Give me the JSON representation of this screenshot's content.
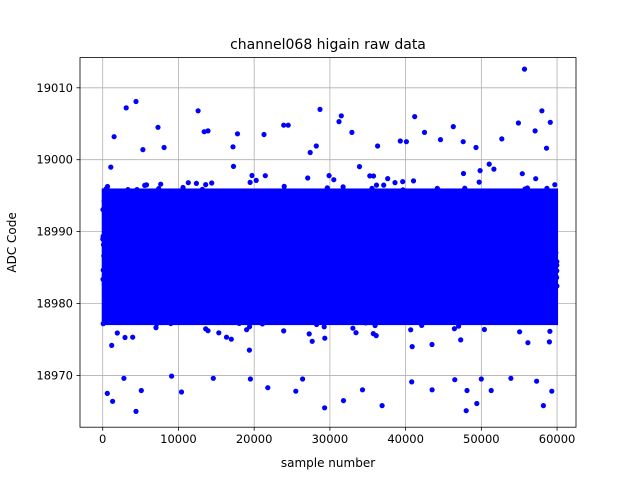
{
  "chart_data": {
    "type": "scatter",
    "title": "channel068 higain raw data",
    "xlabel": "sample number",
    "ylabel": "ADC Code",
    "xlim": [
      -3000,
      62500
    ],
    "ylim": [
      18962.8,
      19014.2
    ],
    "x_ticks": [
      0,
      10000,
      20000,
      30000,
      40000,
      50000,
      60000
    ],
    "y_ticks": [
      18970,
      18980,
      18990,
      19000,
      19010
    ],
    "grid": true,
    "marker_color": "#0000ff",
    "series": [
      {
        "n_samples": 60000,
        "x_range": [
          0,
          59999
        ],
        "dense_band": [
          18973.5,
          18999.5
        ],
        "points": [
          [
            55700,
            19012.6
          ],
          [
            4400,
            19008.1
          ],
          [
            3100,
            19007.2
          ],
          [
            28700,
            19007.0
          ],
          [
            58000,
            19006.8
          ],
          [
            12600,
            19006.8
          ],
          [
            31500,
            19006.1
          ],
          [
            41200,
            19006.0
          ],
          [
            59100,
            19005.2
          ],
          [
            54900,
            19005.1
          ],
          [
            7300,
            19004.5
          ],
          [
            31200,
            19005.3
          ],
          [
            23900,
            19004.8
          ],
          [
            24500,
            19004.8
          ],
          [
            46300,
            19004.6
          ],
          [
            13400,
            19003.9
          ],
          [
            13900,
            19004.0
          ],
          [
            57100,
            19004.0
          ],
          [
            42500,
            19003.8
          ],
          [
            17800,
            19003.6
          ],
          [
            32900,
            19003.8
          ],
          [
            1500,
            19003.2
          ],
          [
            21300,
            19003.5
          ],
          [
            52700,
            19002.9
          ],
          [
            39300,
            19002.6
          ],
          [
            40100,
            19002.5
          ],
          [
            44600,
            19002.8
          ],
          [
            47600,
            19002.5
          ],
          [
            5300,
            19001.4
          ],
          [
            8100,
            19001.7
          ],
          [
            17200,
            19001.8
          ],
          [
            28200,
            19001.9
          ],
          [
            36300,
            19001.9
          ],
          [
            49300,
            19001.7
          ],
          [
            58600,
            19001.6
          ],
          [
            27400,
            19001.0
          ],
          [
            5100,
            18967.9
          ],
          [
            2800,
            18969.6
          ],
          [
            9100,
            18969.9
          ],
          [
            14600,
            18969.6
          ],
          [
            19500,
            18969.5
          ],
          [
            26400,
            18969.5
          ],
          [
            40800,
            18969.1
          ],
          [
            46500,
            18969.4
          ],
          [
            50000,
            18969.5
          ],
          [
            53900,
            18969.6
          ],
          [
            57300,
            18969.2
          ],
          [
            600,
            18967.5
          ],
          [
            10400,
            18967.7
          ],
          [
            21800,
            18968.3
          ],
          [
            25500,
            18967.8
          ],
          [
            34300,
            18968.0
          ],
          [
            43500,
            18968.0
          ],
          [
            48100,
            18967.9
          ],
          [
            51300,
            18967.9
          ],
          [
            59300,
            18967.8
          ],
          [
            1300,
            18966.4
          ],
          [
            31800,
            18966.5
          ],
          [
            36900,
            18965.8
          ],
          [
            49400,
            18966.1
          ],
          [
            58200,
            18965.8
          ],
          [
            4400,
            18965.0
          ],
          [
            29300,
            18965.5
          ],
          [
            48000,
            18965.1
          ]
        ]
      }
    ]
  }
}
